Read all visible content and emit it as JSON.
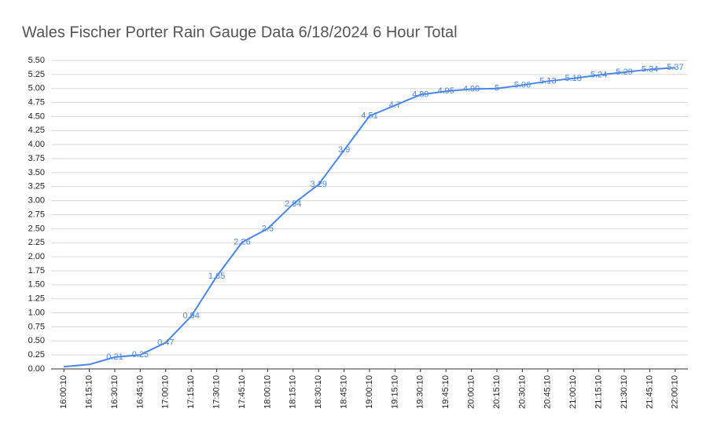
{
  "chart_data": {
    "type": "line",
    "title": "Wales Fischer Porter Rain Gauge Data 6/18/2024 6 Hour Total",
    "categories": [
      "16:00:10",
      "16:15:10",
      "16:30:10",
      "16:45:10",
      "17:00:10",
      "17:15:10",
      "17:30:10",
      "17:45:10",
      "18:00:10",
      "18:15:10",
      "18:30:10",
      "18:45:10",
      "19:00:10",
      "19:15:10",
      "19:30:10",
      "19:45:10",
      "20:00:10",
      "20:15:10",
      "20:30:10",
      "20:45:10",
      "21:00:10",
      "21:15:10",
      "21:30:10",
      "21:45:10",
      "22:00:10"
    ],
    "series": [
      {
        "color": "#4a86e8",
        "values": [
          0.04,
          0.08,
          0.21,
          0.25,
          0.47,
          0.94,
          1.65,
          2.26,
          2.5,
          2.94,
          3.29,
          3.9,
          4.51,
          4.7,
          4.89,
          4.95,
          4.99,
          5,
          5.06,
          5.13,
          5.18,
          5.24,
          5.29,
          5.34,
          5.37
        ],
        "value_labels": [
          null,
          null,
          "0.21",
          "0.25",
          "0.47",
          "0.94",
          "1.65",
          "2.26",
          "2.5",
          "2.94",
          "3.29",
          "3.9",
          "4.51",
          "4.7",
          "4.89",
          "4.95",
          "4.99",
          "5",
          "5.06",
          "5.13",
          "5.18",
          "5.24",
          "5.29",
          "5.34",
          "5.37"
        ]
      }
    ],
    "ylim": [
      0,
      5.5
    ],
    "yticks": [
      {
        "value": 0,
        "label": "0.00"
      },
      {
        "value": 0.25,
        "label": "0.25"
      },
      {
        "value": 0.5,
        "label": "0.50"
      },
      {
        "value": 0.75,
        "label": "0.75"
      },
      {
        "value": 1,
        "label": "1.00"
      },
      {
        "value": 1.25,
        "label": "1.25"
      },
      {
        "value": 1.5,
        "label": "1.50"
      },
      {
        "value": 1.75,
        "label": "1.75"
      },
      {
        "value": 2,
        "label": "2.00"
      },
      {
        "value": 2.25,
        "label": "2.25"
      },
      {
        "value": 2.5,
        "label": "2.50"
      },
      {
        "value": 2.75,
        "label": "2.75"
      },
      {
        "value": 3,
        "label": "3.00"
      },
      {
        "value": 3.25,
        "label": "3.25"
      },
      {
        "value": 3.5,
        "label": "3.50"
      },
      {
        "value": 3.75,
        "label": "3.75"
      },
      {
        "value": 4,
        "label": "4.00"
      },
      {
        "value": 4.25,
        "label": "4.25"
      },
      {
        "value": 4.5,
        "label": "4.50"
      },
      {
        "value": 4.75,
        "label": "4.75"
      },
      {
        "value": 5,
        "label": "5.00"
      },
      {
        "value": 5.25,
        "label": "5.25"
      },
      {
        "value": 5.5,
        "label": "5.50"
      }
    ],
    "grid": true
  }
}
